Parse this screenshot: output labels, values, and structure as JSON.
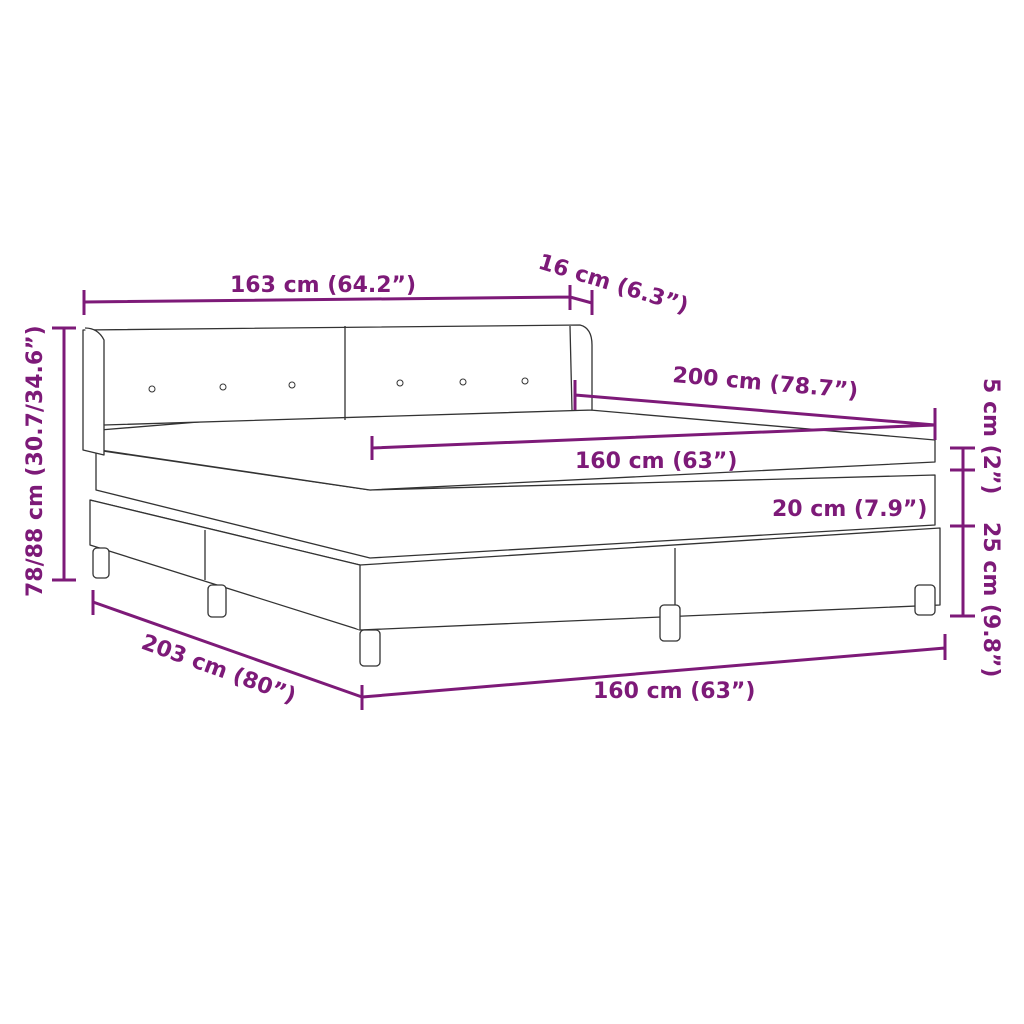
{
  "accent_color": "#7d1a78",
  "dimensions": {
    "headboard_width": "163 cm (64.2”)",
    "headboard_depth": "16 cm (6.3”)",
    "length_mattress": "200 cm (78.7”)",
    "mattress_width": "160 cm (63”)",
    "topper_height": "5 cm (2”)",
    "mattress_height": "20 cm (7.9”)",
    "base_height": "25 cm (9.8”)",
    "total_height": "78/88 cm (30.7/34.6”)",
    "total_length": "203 cm (80”)",
    "base_width": "160 cm (63”)"
  }
}
